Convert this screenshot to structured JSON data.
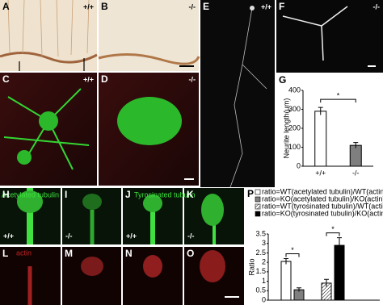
{
  "panels": [
    {
      "letter": "A",
      "genotype": "+/+"
    },
    {
      "letter": "B",
      "genotype": "-/-"
    },
    {
      "letter": "C",
      "genotype": "+/+"
    },
    {
      "letter": "D",
      "genotype": "-/-"
    },
    {
      "letter": "E",
      "genotype": "+/+"
    },
    {
      "letter": "F",
      "genotype": "-/-"
    },
    {
      "letter": "H",
      "genotype": "+/+"
    },
    {
      "letter": "I",
      "genotype": "-/-"
    },
    {
      "letter": "J",
      "genotype": "+/+"
    },
    {
      "letter": "K",
      "genotype": "-/-"
    },
    {
      "letter": "L"
    },
    {
      "letter": "M"
    },
    {
      "letter": "N"
    },
    {
      "letter": "O"
    }
  ],
  "labels": {
    "acetylated": "Acetylated tubulin",
    "tyrosinated": "Tyrosinated tubulin",
    "actin": "actin"
  },
  "chart_data": [
    {
      "type": "bar",
      "label": "G",
      "ylabel": "Neurite length(μm)",
      "categories": [
        "+/+",
        "-/-"
      ],
      "values": [
        290,
        110
      ],
      "errors": [
        20,
        15
      ],
      "colors": [
        "#ffffff",
        "#7f7f7f"
      ],
      "ylim": [
        0,
        400
      ],
      "yticks": [
        0,
        100,
        200,
        300,
        400
      ],
      "annotation": "*"
    },
    {
      "type": "grouped-bar",
      "label": "P",
      "ylabel": "Ratio",
      "series": [
        {
          "name": "ratio=WT(acetylated tubulin)/WT(actin)",
          "color": "#ffffff",
          "values": [
            2.05
          ],
          "errors": [
            0.15
          ]
        },
        {
          "name": "ratio=KO(acetylated tubulin)/KO(actin)",
          "color": "#7f7f7f",
          "values": [
            0.55
          ],
          "errors": [
            0.1
          ]
        },
        {
          "name": "ratio=WT(tyrosinated tubulin)/WT(actin)",
          "color": "#ffffff",
          "hatch": true,
          "values": [
            0.9
          ],
          "errors": [
            0.2
          ]
        },
        {
          "name": "ratio=KO(tyrosinated tubulin)/KO(actin)",
          "color": "#000000",
          "values": [
            2.9
          ],
          "errors": [
            0.4
          ]
        }
      ],
      "ylim": [
        0,
        3.5
      ],
      "yticks": [
        0,
        0.5,
        1,
        1.5,
        2,
        2.5,
        3,
        3.5
      ],
      "annotations": [
        "*",
        "*"
      ]
    }
  ]
}
